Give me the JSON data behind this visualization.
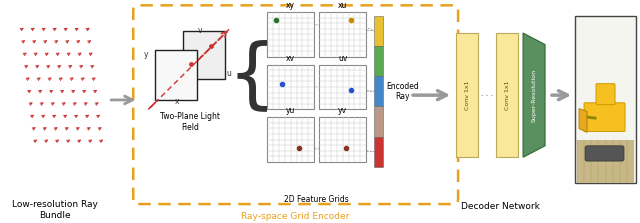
{
  "bg_color": "#ffffff",
  "fig_width": 6.4,
  "fig_height": 2.23,
  "dpi": 100,
  "ray_bundle_label": "Low-resolution Ray\nBundle",
  "two_plane_label": "Two-Plane Light\nField",
  "feature_grids_label": "2D Feature Grids",
  "encoded_ray_label": "Encoded\nRay",
  "decoder_label": "Decoder Network",
  "encoder_box_label": "Ray-space Grid Encoder",
  "grid_labels": [
    [
      "xy",
      "xu"
    ],
    [
      "xv",
      "uv"
    ],
    [
      "yu",
      "yv"
    ]
  ],
  "conv_labels": [
    "Conv 1x1",
    "Conv 1x1",
    "Super-Resolution"
  ],
  "orange_color": "#E8A020",
  "red_color": "#CC3333",
  "green_color": "#5A9060",
  "yellow_color": "#FAE89A",
  "grid_line_color": "#BBBBBB",
  "dot_colors": [
    [
      "#2A7030",
      "#CC8800"
    ],
    [
      "#2255CC",
      "#2255CC"
    ],
    [
      "#883322",
      "#883322"
    ]
  ],
  "encoded_bar_colors": [
    "#E8C030",
    "#5AAA50",
    "#4488CC",
    "#BB9988",
    "#CC3333"
  ],
  "axis_label_color": "#333333",
  "label_fontsize": 6.5,
  "small_fontsize": 5.5
}
